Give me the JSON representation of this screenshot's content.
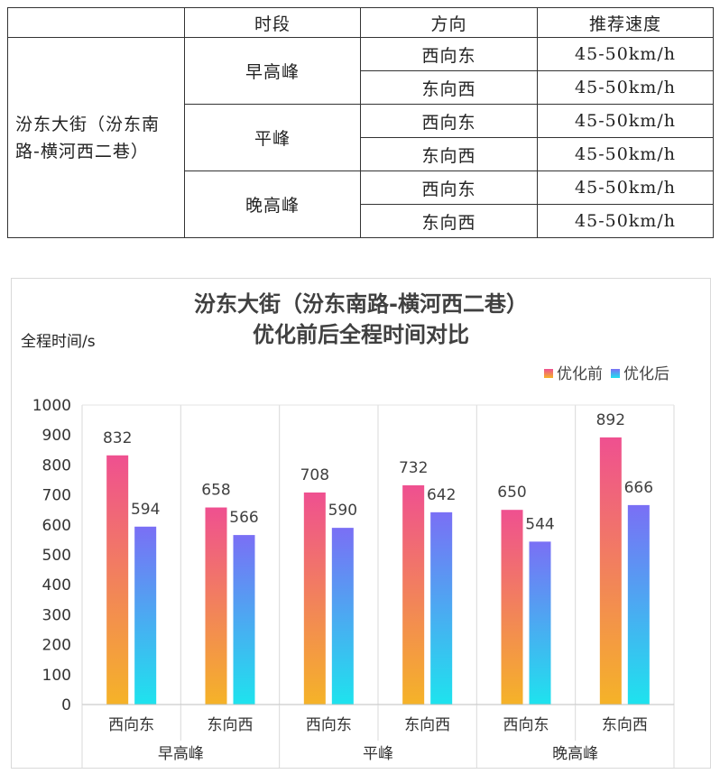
{
  "table": {
    "header": {
      "col0": "",
      "period": "时段",
      "direction": "方向",
      "speed": "推荐速度"
    },
    "road_name": "汾东大街（汾东南路-横河西二巷）",
    "road_line1": "汾东大街（汾东南",
    "road_line2": "路-横河西二巷）",
    "rows": [
      {
        "period": "早高峰",
        "directions": [
          {
            "dir": "西向东",
            "speed": "45-50km/h"
          },
          {
            "dir": "东向西",
            "speed": "45-50km/h"
          }
        ]
      },
      {
        "period": "平峰",
        "directions": [
          {
            "dir": "西向东",
            "speed": "45-50km/h"
          },
          {
            "dir": "东向西",
            "speed": "45-50km/h"
          }
        ]
      },
      {
        "period": "晚高峰",
        "directions": [
          {
            "dir": "西向东",
            "speed": "45-50km/h"
          },
          {
            "dir": "东向西",
            "speed": "45-50km/h"
          }
        ]
      }
    ]
  },
  "chart_data": {
    "type": "bar",
    "title": "汾东大街（汾东南路-横河西二巷）",
    "subtitle": "优化前后全程时间对比",
    "ylabel": "全程时间/s",
    "xlabel": "",
    "ylim": [
      0,
      1000
    ],
    "yticks": [
      0,
      100,
      200,
      300,
      400,
      500,
      600,
      700,
      800,
      900,
      1000
    ],
    "groups": [
      "早高峰",
      "平峰",
      "晚高峰"
    ],
    "categories": [
      "西向东",
      "东向西",
      "西向东",
      "东向西",
      "西向东",
      "东向西"
    ],
    "series": [
      {
        "name": "优化前",
        "values": [
          832,
          658,
          708,
          732,
          650,
          892
        ],
        "color_top": "#ef5090",
        "color_bottom": "#f5b328"
      },
      {
        "name": "优化后",
        "values": [
          594,
          566,
          590,
          642,
          544,
          666
        ],
        "color_top": "#7a6ff5",
        "color_bottom": "#1ee3ee"
      }
    ],
    "legend_position": "top-right",
    "grid": true
  }
}
